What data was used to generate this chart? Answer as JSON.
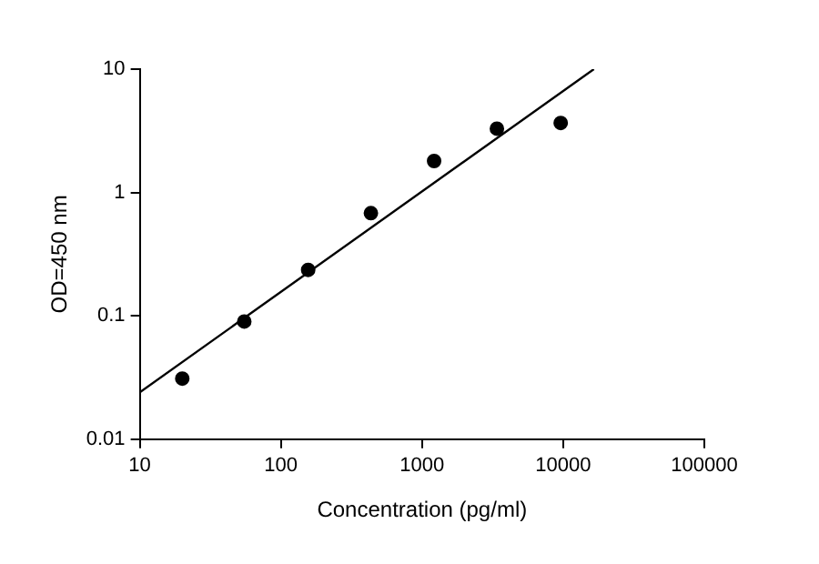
{
  "chart_data": {
    "type": "scatter",
    "xlabel": "Concentration (pg/ml)",
    "ylabel": "OD=450 nm",
    "log": "xy",
    "xlim": [
      10,
      100000
    ],
    "xticks": [
      10,
      100,
      1000,
      10000,
      100000
    ],
    "ylim": [
      0.01,
      10
    ],
    "yticks": [
      0.01,
      0.1,
      1,
      10
    ],
    "grid": false,
    "legend": false,
    "series": [
      {
        "color": "#000000",
        "marker": "circle",
        "x": [
          20,
          55,
          156,
          434,
          1217,
          3390,
          9600
        ],
        "values": [
          0.031,
          0.09,
          0.236,
          0.68,
          1.8,
          3.29,
          3.66
        ]
      },
      {
        "type": "line",
        "color": "#000000",
        "marker": "none",
        "line_style": "solid",
        "x": [
          10,
          16500
        ],
        "values": [
          0.024,
          10
        ]
      }
    ]
  }
}
